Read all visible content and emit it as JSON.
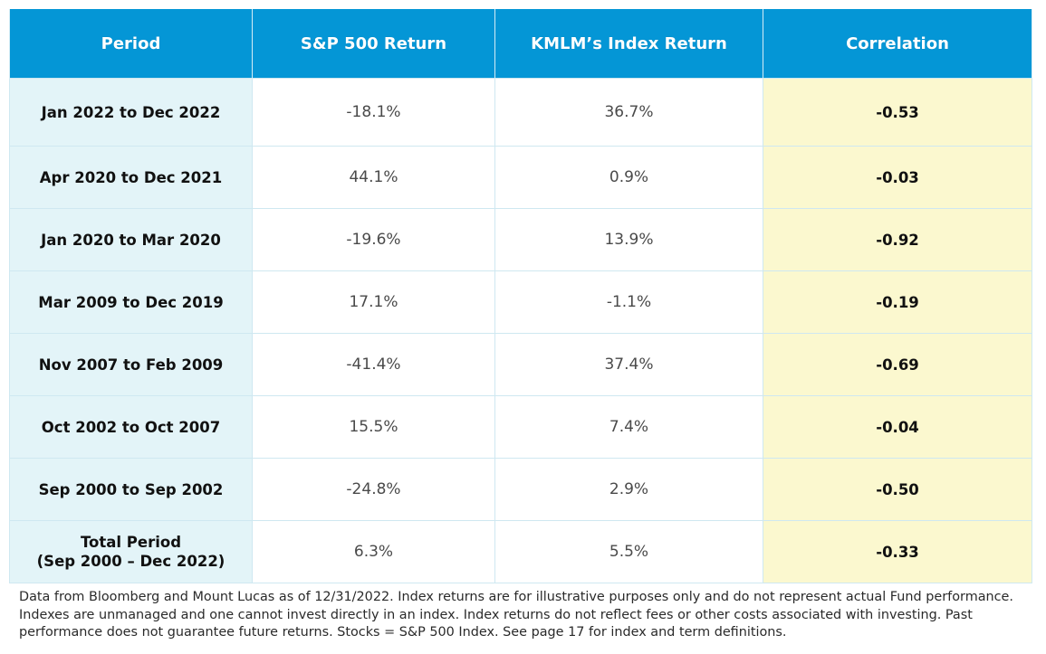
{
  "table": {
    "headers": [
      "Period",
      "S&P 500 Return",
      "KMLM’s Index Return",
      "Correlation"
    ],
    "rows": [
      {
        "period": [
          "Jan 2022 to Dec 2022"
        ],
        "sp500": "-18.1%",
        "kmlm": "36.7%",
        "correlation": "-0.53"
      },
      {
        "period": [
          "Apr 2020 to Dec 2021"
        ],
        "sp500": "44.1%",
        "kmlm": "0.9%",
        "correlation": "-0.03"
      },
      {
        "period": [
          "Jan 2020 to Mar 2020"
        ],
        "sp500": "-19.6%",
        "kmlm": "13.9%",
        "correlation": "-0.92"
      },
      {
        "period": [
          "Mar 2009 to Dec 2019"
        ],
        "sp500": "17.1%",
        "kmlm": "-1.1%",
        "correlation": "-0.19"
      },
      {
        "period": [
          "Nov 2007 to Feb 2009"
        ],
        "sp500": "-41.4%",
        "kmlm": "37.4%",
        "correlation": "-0.69"
      },
      {
        "period": [
          "Oct 2002 to Oct 2007"
        ],
        "sp500": "15.5%",
        "kmlm": "7.4%",
        "correlation": "-0.04"
      },
      {
        "period": [
          "Sep 2000 to Sep 2002"
        ],
        "sp500": "-24.8%",
        "kmlm": "2.9%",
        "correlation": "-0.50"
      },
      {
        "period": [
          "Total Period",
          "(Sep 2000 – Dec 2022)"
        ],
        "sp500": "6.3%",
        "kmlm": "5.5%",
        "correlation": "-0.33"
      }
    ]
  },
  "footnote": {
    "lines": [
      "Data from Bloomberg and Mount Lucas as of 12/31/2022. Index returns are for illustrative purposes only and do not represent actual Fund performance.",
      "Indexes are unmanaged and one cannot invest directly in an index. Index returns do not reflect fees or other costs associated with investing. Past",
      "performance does not guarantee future returns. Stocks = S&P 500 Index. See page 17 for index and term definitions."
    ]
  },
  "colors": {
    "header_bg": "#0496d6",
    "period_bg": "#e3f4f8",
    "correlation_bg": "#fbf8cf"
  }
}
